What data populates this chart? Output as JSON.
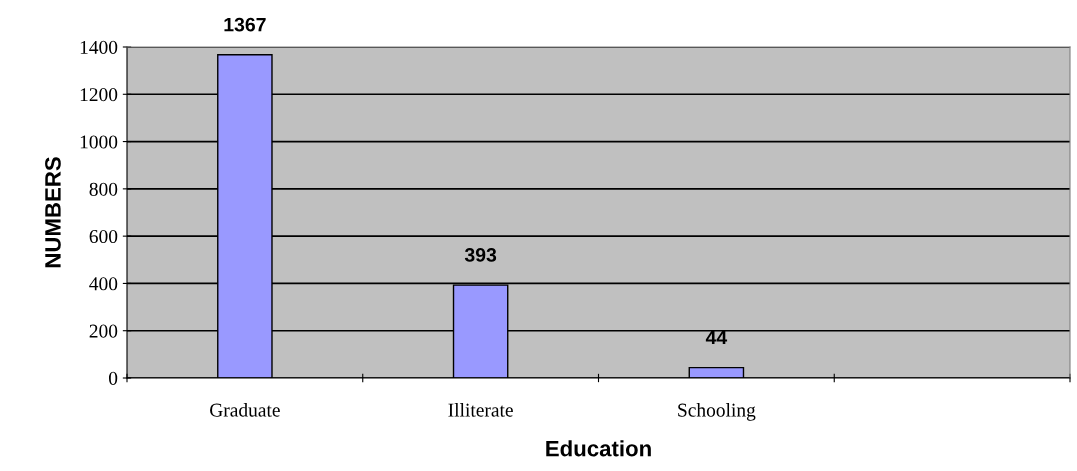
{
  "chart_data": {
    "type": "bar",
    "xlabel": "Education",
    "ylabel": "NUMBERS",
    "categories": [
      "Graduate",
      "Illiterate",
      "Schooling",
      null
    ],
    "values": [
      1367,
      393,
      44,
      null
    ],
    "color": "#9999ff",
    "ylim": [
      0,
      1400
    ],
    "yticks": [
      0,
      200,
      400,
      600,
      800,
      1000,
      1200,
      1400
    ],
    "grid": "y",
    "data_labels": true
  }
}
